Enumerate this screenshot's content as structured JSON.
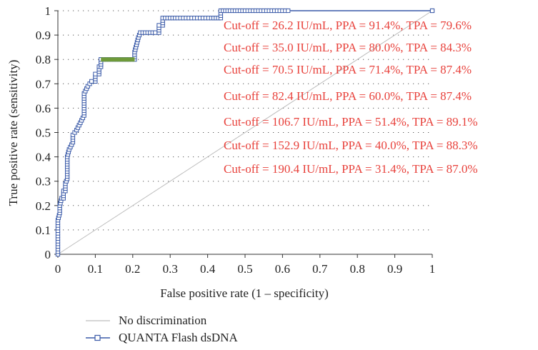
{
  "chart_data": {
    "type": "line",
    "xlabel": "False positive rate (1 – specificity)",
    "ylabel": "True positive rate (sensitivity)",
    "xlim": [
      0,
      1
    ],
    "ylim": [
      0,
      1
    ],
    "x_ticks": [
      "0",
      "0.1",
      "0.2",
      "0.3",
      "0.4",
      "0.5",
      "0.6",
      "0.7",
      "0.8",
      "0.9",
      "1"
    ],
    "y_ticks": [
      "0",
      "0.1",
      "0.2",
      "0.3",
      "0.4",
      "0.5",
      "0.6",
      "0.7",
      "0.8",
      "0.9",
      "1"
    ],
    "grid": "dotted horizontal",
    "legend_position": "bottom-left",
    "series": [
      {
        "name": "No discrimination",
        "color": "#bdbdbd",
        "x": [
          0,
          1
        ],
        "y": [
          0,
          1
        ]
      },
      {
        "name": "QUANTA Flash dsDNA",
        "color": "#3a5aa8",
        "marker": "open-square",
        "x": [
          0,
          0,
          0.005,
          0.005,
          0.01,
          0.01,
          0.015,
          0.015,
          0.02,
          0.02,
          0.025,
          0.025,
          0.03,
          0.03,
          0.04,
          0.04,
          0.05,
          0.05,
          0.06,
          0.06,
          0.07,
          0.07,
          0.08,
          0.08,
          0.09,
          0.09,
          0.1,
          0.1,
          0.11,
          0.11,
          0.115,
          0.115,
          0.13,
          0.15,
          0.17,
          0.19,
          0.205,
          0.205,
          0.21,
          0.21,
          0.215,
          0.215,
          0.22,
          0.22,
          0.24,
          0.26,
          0.27,
          0.27,
          0.28,
          0.28,
          0.3,
          0.32,
          0.35,
          0.38,
          0.41,
          0.435,
          0.435,
          0.46,
          0.5,
          0.55,
          0.6,
          0.615,
          1
        ],
        "y": [
          0,
          0.14,
          0.17,
          0.2,
          0.23,
          0.23,
          0.23,
          0.26,
          0.26,
          0.29,
          0.31,
          0.4,
          0.43,
          0.43,
          0.46,
          0.49,
          0.51,
          0.51,
          0.54,
          0.54,
          0.57,
          0.66,
          0.69,
          0.69,
          0.71,
          0.71,
          0.71,
          0.74,
          0.74,
          0.77,
          0.77,
          0.8,
          0.8,
          0.8,
          0.8,
          0.8,
          0.8,
          0.83,
          0.86,
          0.86,
          0.89,
          0.89,
          0.91,
          0.91,
          0.91,
          0.91,
          0.91,
          0.94,
          0.94,
          0.97,
          0.97,
          0.97,
          0.97,
          0.97,
          0.97,
          0.97,
          1,
          1,
          1,
          1,
          1,
          1,
          1
        ]
      }
    ],
    "highlight_segment": {
      "color": "#6e9a3a",
      "x": [
        0.115,
        0.205
      ],
      "y": [
        0.8,
        0.8
      ]
    },
    "annotations": [
      {
        "text": "Cut-off = 26.2 IU/mL, PPA = 91.4%, TPA = 79.6%",
        "color": "#e8423c"
      },
      {
        "text": "Cut-off = 35.0 IU/mL, PPA = 80.0%, TPA = 84.3%",
        "color": "#e8423c"
      },
      {
        "text": "Cut-off = 70.5 IU/mL, PPA = 71.4%, TPA = 87.4%",
        "color": "#e8423c"
      },
      {
        "text": "Cut-off = 82.4 IU/mL, PPA = 60.0%, TPA = 87.4%",
        "color": "#e8423c"
      },
      {
        "text": "Cut-off = 106.7 IU/mL, PPA = 51.4%, TPA = 89.1%",
        "color": "#e8423c"
      },
      {
        "text": "Cut-off = 152.9 IU/mL, PPA = 40.0%, TPA = 88.3%",
        "color": "#e8423c"
      },
      {
        "text": "Cut-off = 190.4 IU/mL, PPA = 31.4%, TPA = 87.0%",
        "color": "#e8423c"
      }
    ]
  }
}
